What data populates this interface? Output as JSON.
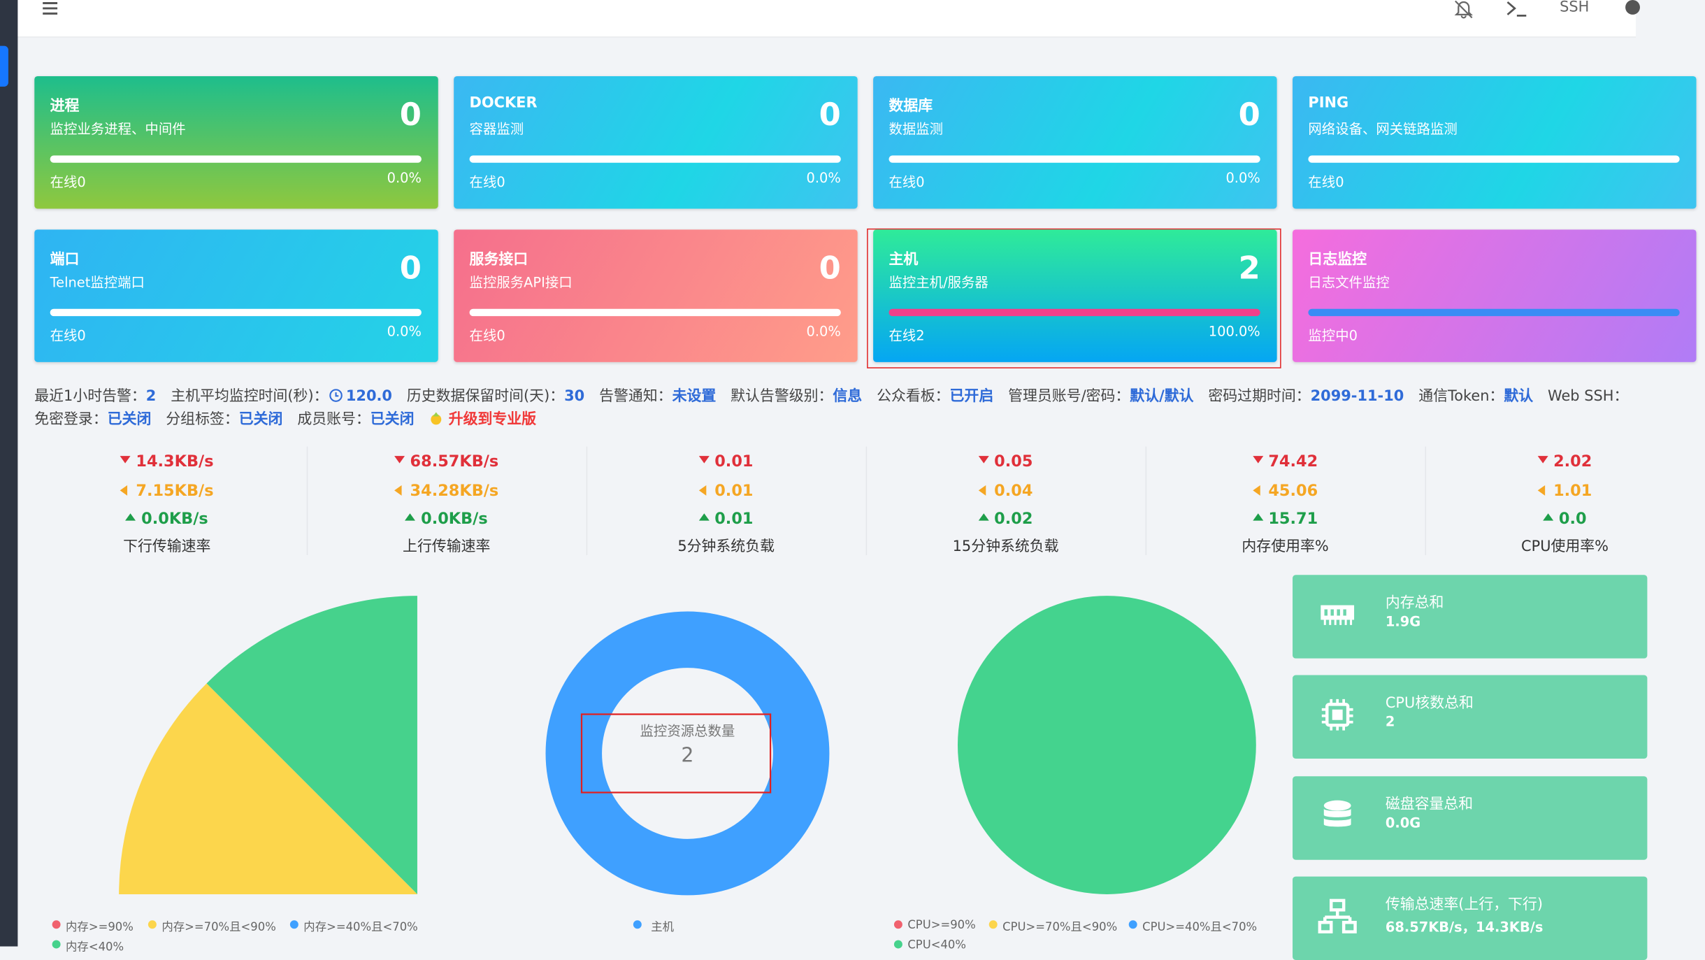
{
  "topbar": {
    "ssh": "SSH"
  },
  "cards": [
    {
      "title": "进程",
      "subtitle": "监控业务进程、中间件",
      "count": "0",
      "status": "在线0",
      "percent": "0.0%"
    },
    {
      "title": "DOCKER",
      "subtitle": "容器监测",
      "count": "0",
      "status": "在线0",
      "percent": "0.0%"
    },
    {
      "title": "数据库",
      "subtitle": "数据监测",
      "count": "0",
      "status": "在线0",
      "percent": "0.0%"
    },
    {
      "title": "PING",
      "subtitle": "网络设备、网关链路监测",
      "status": "在线0"
    },
    {
      "title": "端口",
      "subtitle": "Telnet监控端口",
      "count": "0",
      "status": "在线0",
      "percent": "0.0%"
    },
    {
      "title": "服务接口",
      "subtitle": "监控服务API接口",
      "count": "0",
      "status": "在线0",
      "percent": "0.0%"
    },
    {
      "title": "主机",
      "subtitle": "监控主机/服务器",
      "count": "2",
      "status": "在线2",
      "percent": "100.0%"
    },
    {
      "title": "日志监控",
      "subtitle": "日志文件监控",
      "status": "监控中0"
    }
  ],
  "info": {
    "line1": [
      {
        "label": "最近1小时告警：",
        "value": "2"
      },
      {
        "label": "主机平均监控时间(秒)：",
        "value": "120.0"
      },
      {
        "label": "历史数据保留时间(天)：",
        "value": "30"
      },
      {
        "label": "告警通知：",
        "value": "未设置"
      },
      {
        "label": "默认告警级别：",
        "value": "信息"
      },
      {
        "label": "公众看板：",
        "value": "已开启"
      },
      {
        "label": "管理员账号/密码：",
        "value": "默认/默认"
      },
      {
        "label": "密码过期时间：",
        "value": "2099-11-10"
      },
      {
        "label": "通信Token：",
        "value": "默认"
      },
      {
        "label": "Web SSH："
      }
    ],
    "line2": [
      {
        "label": "免密登录：",
        "value": "已关闭"
      },
      {
        "label": "分组标签：",
        "value": "已关闭"
      },
      {
        "label": "成员账号：",
        "value": "已关闭"
      }
    ],
    "upgrade": "升级到专业版"
  },
  "stats": [
    {
      "max": "14.3KB/s",
      "avg": "7.15KB/s",
      "min": "0.0KB/s",
      "label": "下行传输速率"
    },
    {
      "max": "68.57KB/s",
      "avg": "34.28KB/s",
      "min": "0.0KB/s",
      "label": "上行传输速率"
    },
    {
      "max": "0.01",
      "avg": "0.01",
      "min": "0.01",
      "label": "5分钟系统负载"
    },
    {
      "max": "0.05",
      "avg": "0.04",
      "min": "0.02",
      "label": "15分钟系统负载"
    },
    {
      "max": "74.42",
      "avg": "45.06",
      "min": "15.71",
      "label": "内存使用率%"
    },
    {
      "max": "2.02",
      "avg": "1.01",
      "min": "0.0",
      "label": "CPU使用率%"
    }
  ],
  "memory_legend": [
    "内存>=90%",
    "内存>=70%且<90%",
    "内存>=40%且<70%",
    "内存<40%"
  ],
  "donut": {
    "title": "监控资源总数量",
    "value": "2",
    "legend": [
      "主机"
    ]
  },
  "cpu_legend": [
    "CPU>=90%",
    "CPU>=70%且<90%",
    "CPU>=40%且<70%",
    "CPU<40%"
  ],
  "summary": [
    {
      "title": "内存总和",
      "value": "1.9G"
    },
    {
      "title": "CPU核数总和",
      "value": "2"
    },
    {
      "title": "磁盘容量总和",
      "value": "0.0G"
    },
    {
      "title": "传输总速率(上行，下行)",
      "value": "68.57KB/s，14.3KB/s"
    }
  ]
}
